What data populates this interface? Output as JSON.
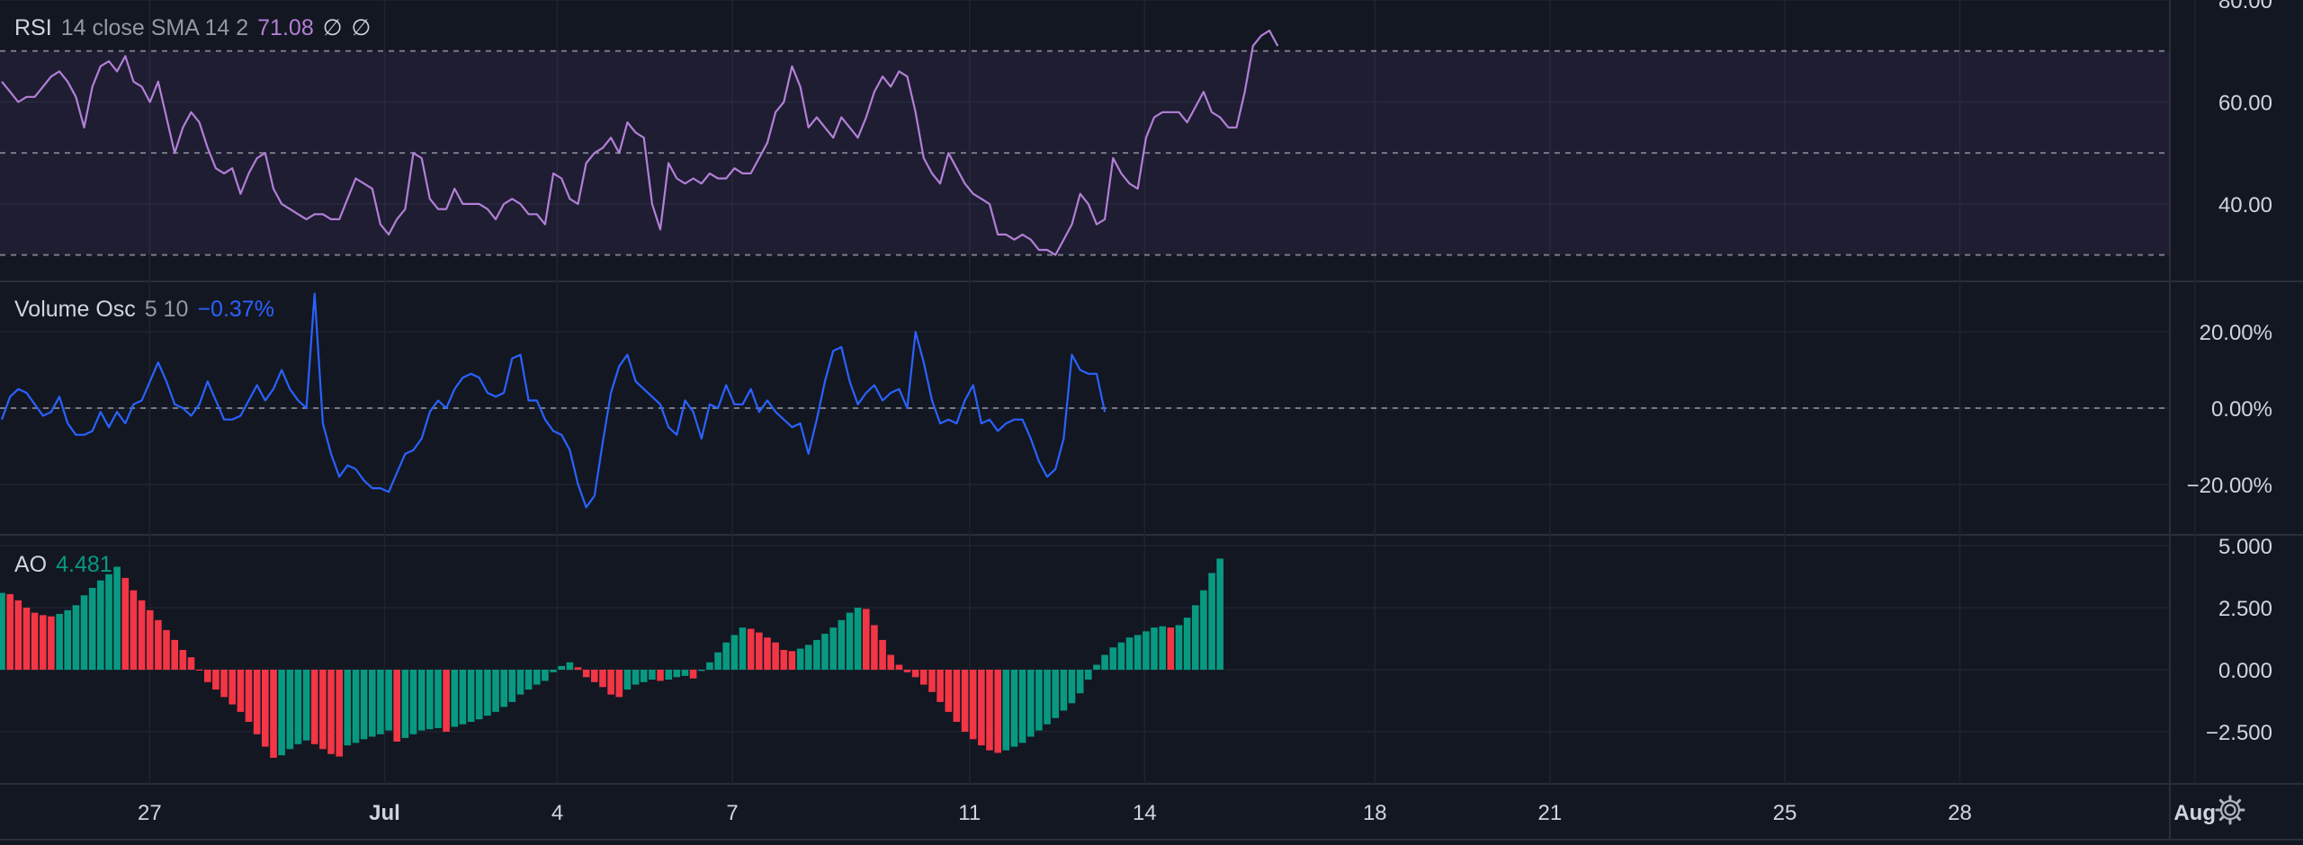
{
  "colors": {
    "background": "#131722",
    "grid": "#1f2430",
    "separator": "#2a2e39",
    "text": "#d1d4dc",
    "muted": "#9598a1",
    "rsi_line": "#b27fd6",
    "rsi_band": "#7e57c2",
    "volume_osc_line": "#2962ff",
    "ao_up": "#089981",
    "ao_down": "#f23645"
  },
  "icons": {
    "settings": "gear-icon"
  },
  "legends": {
    "rsi": {
      "title": "RSI",
      "params": "14 close SMA 14 2",
      "value": "71.08",
      "extra1": "∅",
      "extra2": "∅"
    },
    "volume_osc": {
      "title": "Volume Osc",
      "params": "5 10",
      "value": "−0.37%"
    },
    "ao": {
      "title": "AO",
      "value": "4.481"
    }
  },
  "chart_data": [
    {
      "type": "line",
      "name": "RSI",
      "ylim": [
        25,
        80
      ],
      "ticks": [
        "80.00",
        "60.00",
        "40.00"
      ],
      "tick_values": [
        80,
        60,
        40
      ],
      "band": [
        30,
        70
      ],
      "reference_lines": [
        30,
        50,
        70
      ],
      "values": [
        64,
        62,
        60,
        61,
        61,
        63,
        65,
        66,
        64,
        61,
        55,
        63,
        67,
        68,
        66,
        69,
        64,
        63,
        60,
        64,
        57,
        50,
        55,
        58,
        56,
        51,
        47,
        46,
        47,
        42,
        46,
        49,
        50,
        43,
        40,
        39,
        38,
        37,
        38,
        38,
        37,
        37,
        41,
        45,
        44,
        43,
        36,
        34,
        37,
        39,
        50,
        49,
        41,
        39,
        39,
        43,
        40,
        40,
        40,
        39,
        37,
        40,
        41,
        40,
        38,
        38,
        36,
        46,
        45,
        41,
        40,
        48,
        50,
        51,
        53,
        50,
        56,
        54,
        53,
        40,
        35,
        48,
        45,
        44,
        45,
        44,
        46,
        45,
        45,
        47,
        46,
        46,
        49,
        52,
        58,
        60,
        67,
        63,
        55,
        57,
        55,
        53,
        57,
        55,
        53,
        57,
        62,
        65,
        63,
        66,
        65,
        58,
        49,
        46,
        44,
        50,
        47,
        44,
        42,
        41,
        40,
        34,
        34,
        33,
        34,
        33,
        31,
        31,
        30,
        33,
        36,
        42,
        40,
        36,
        37,
        49,
        46,
        44,
        43,
        53,
        57,
        58,
        58,
        58,
        56,
        59,
        62,
        58,
        57,
        55,
        55,
        62,
        71,
        73,
        74,
        71
      ]
    },
    {
      "type": "line",
      "name": "Volume Osc",
      "ylim": [
        -33,
        33
      ],
      "ticks": [
        "20.00%",
        "0.00%",
        "−20.00%"
      ],
      "tick_values": [
        20,
        0,
        -20
      ],
      "reference_lines": [
        0
      ],
      "values": [
        -3,
        3,
        5,
        4,
        1,
        -2,
        -1,
        3,
        -4,
        -7,
        -7,
        -6,
        -1,
        -5,
        -1,
        -4,
        1,
        2,
        7,
        12,
        7,
        1,
        0,
        -2,
        1,
        7,
        2,
        -3,
        -3,
        -2,
        2,
        6,
        2,
        5,
        10,
        5,
        2,
        0,
        30,
        -4,
        -12,
        -18,
        -15,
        -16,
        -19,
        -21,
        -21,
        -22,
        -17,
        -12,
        -11,
        -8,
        -1,
        2,
        0,
        5,
        8,
        9,
        8,
        4,
        3,
        4,
        13,
        14,
        2,
        2,
        -3,
        -6,
        -7,
        -11,
        -20,
        -26,
        -23,
        -9,
        4,
        11,
        14,
        7,
        5,
        3,
        1,
        -5,
        -7,
        2,
        -1,
        -8,
        1,
        0,
        6,
        1,
        1,
        5,
        -1,
        2,
        -1,
        -3,
        -5,
        -4,
        -12,
        -3,
        7,
        15,
        16,
        7,
        1,
        4,
        6,
        2,
        4,
        5,
        0,
        20,
        12,
        2,
        -4,
        -3,
        -4,
        2,
        6,
        -4,
        -3,
        -6,
        -4,
        -3,
        -3,
        -8,
        -14,
        -18,
        -16,
        -8,
        14,
        10,
        9,
        9,
        -1
      ]
    },
    {
      "type": "bar",
      "name": "AO",
      "ylim": [
        -4.6,
        5.4
      ],
      "ticks": [
        "5.000",
        "2.500",
        "0.000",
        "−2.500"
      ],
      "tick_values": [
        5,
        2.5,
        0,
        -2.5
      ],
      "values": [
        3.1,
        3.05,
        2.8,
        2.5,
        2.3,
        2.2,
        2.15,
        2.25,
        2.4,
        2.6,
        3.0,
        3.3,
        3.6,
        3.85,
        4.15,
        3.7,
        3.2,
        2.8,
        2.4,
        2.0,
        1.6,
        1.2,
        0.8,
        0.5,
        0,
        -0.5,
        -0.8,
        -1.1,
        -1.4,
        -1.7,
        -2.1,
        -2.6,
        -3.1,
        -3.55,
        -3.45,
        -3.2,
        -3.0,
        -2.85,
        -3.0,
        -3.2,
        -3.4,
        -3.5,
        -3.05,
        -2.95,
        -2.8,
        -2.7,
        -2.6,
        -2.45,
        -2.9,
        -2.75,
        -2.6,
        -2.45,
        -2.4,
        -2.35,
        -2.5,
        -2.3,
        -2.2,
        -2.1,
        -2.0,
        -1.85,
        -1.7,
        -1.5,
        -1.3,
        -1.0,
        -0.8,
        -0.6,
        -0.45,
        -0.1,
        0.15,
        0.3,
        0.1,
        -0.3,
        -0.5,
        -0.7,
        -1.0,
        -1.1,
        -0.8,
        -0.6,
        -0.5,
        -0.4,
        -0.45,
        -0.4,
        -0.3,
        -0.25,
        -0.35,
        -0.05,
        0.3,
        0.7,
        1.1,
        1.4,
        1.7,
        1.65,
        1.5,
        1.3,
        1.1,
        0.8,
        0.75,
        0.85,
        1.0,
        1.2,
        1.45,
        1.7,
        2.0,
        2.3,
        2.5,
        2.45,
        1.8,
        1.2,
        0.6,
        0.2,
        -0.1,
        -0.3,
        -0.6,
        -0.9,
        -1.3,
        -1.7,
        -2.1,
        -2.5,
        -2.8,
        -3.05,
        -3.25,
        -3.35,
        -3.25,
        -3.1,
        -2.95,
        -2.7,
        -2.45,
        -2.2,
        -1.95,
        -1.65,
        -1.35,
        -0.95,
        -0.4,
        0.2,
        0.6,
        0.9,
        1.1,
        1.3,
        1.4,
        1.55,
        1.7,
        1.75,
        1.7,
        1.8,
        2.1,
        2.6,
        3.2,
        3.9,
        4.48
      ]
    }
  ],
  "x_axis": {
    "labels": [
      "27",
      "Jul",
      "4",
      "7",
      "11",
      "14",
      "18",
      "21",
      "25",
      "28",
      "Aug"
    ],
    "bold": [
      false,
      true,
      false,
      false,
      false,
      false,
      false,
      false,
      false,
      false,
      true
    ],
    "label_fraction": [
      0.065,
      0.167,
      0.242,
      0.318,
      0.421,
      0.497,
      0.597,
      0.673,
      0.775,
      0.851,
      0.953
    ]
  }
}
